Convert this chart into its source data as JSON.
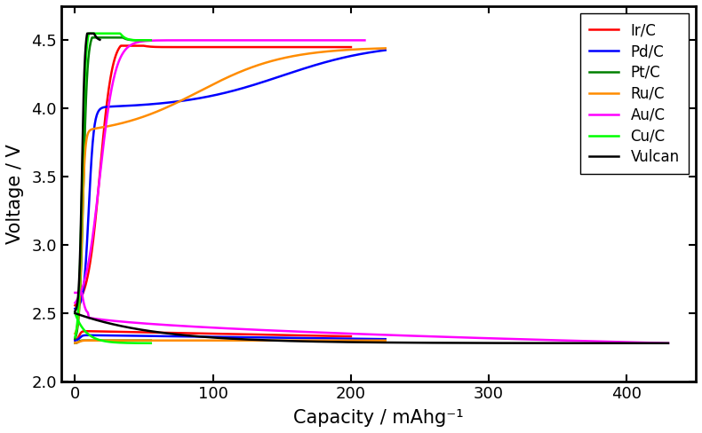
{
  "title": "",
  "xlabel": "Capacity / mAhg⁻¹",
  "ylabel": "Voltage / V",
  "xlim": [
    -10,
    450
  ],
  "ylim": [
    2.0,
    4.75
  ],
  "xticks": [
    0,
    100,
    200,
    300,
    400
  ],
  "yticks": [
    2.0,
    2.5,
    3.0,
    3.5,
    4.0,
    4.5
  ],
  "legend_labels": [
    "Ir/C",
    "Pd/C",
    "Pt/C",
    "Ru/C",
    "Au/C",
    "Cu/C",
    "Vulcan"
  ],
  "colors": {
    "Ir/C": "#ff0000",
    "Pd/C": "#0000ff",
    "Pt/C": "#008000",
    "Ru/C": "#ff8c00",
    "Au/C": "#ff00ff",
    "Cu/C": "#00ff00",
    "Vulcan": "#000000"
  },
  "linewidth": 1.8,
  "background_color": "#ffffff",
  "axis_label_fontsize": 15,
  "tick_fontsize": 13,
  "legend_fontsize": 12
}
